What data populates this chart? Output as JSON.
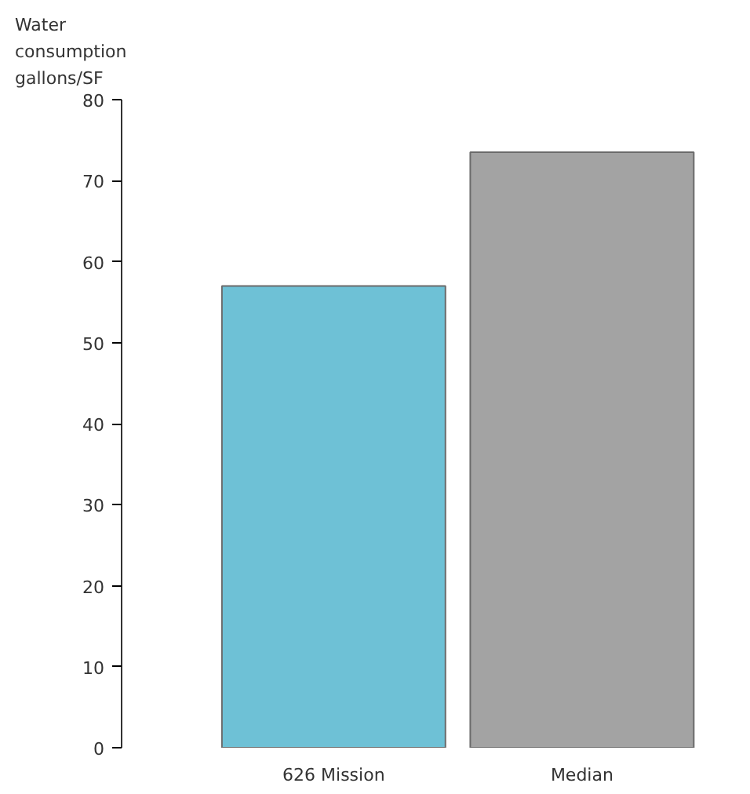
{
  "chart_data": {
    "type": "bar",
    "ylabel": "Water\nconsumption\ngallons/SF",
    "categories": [
      "626 Mission",
      "Median"
    ],
    "values": [
      57,
      73.5
    ],
    "colors": [
      "#6ec1d6",
      "#a3a3a3"
    ],
    "ylim": [
      0,
      80
    ],
    "yticks": [
      0,
      10,
      20,
      30,
      40,
      50,
      60,
      70,
      80
    ],
    "grid": false
  }
}
